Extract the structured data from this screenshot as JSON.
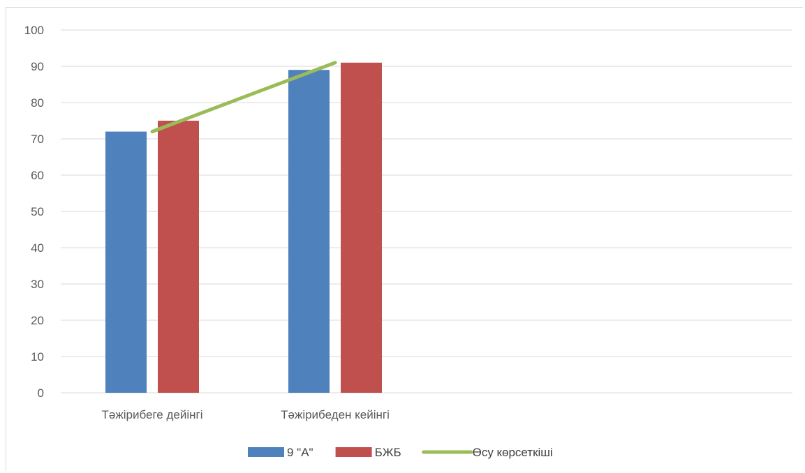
{
  "chart_data": {
    "type": "bar",
    "title": "",
    "xlabel": "",
    "ylabel": "",
    "categories": [
      "Тәжірибеге дейінгі",
      "Тәжірибеден кейінгі",
      "",
      ""
    ],
    "series": [
      {
        "name": "9 \"А\"",
        "type": "bar",
        "color": "#4f81bd",
        "values": [
          72,
          89,
          null,
          null
        ]
      },
      {
        "name": "БЖБ",
        "type": "bar",
        "color": "#c0504d",
        "values": [
          75,
          91,
          null,
          null
        ]
      },
      {
        "name": "Өсу көрсеткіші",
        "type": "line",
        "color": "#9bbb59",
        "values": [
          72,
          91,
          null,
          null
        ]
      }
    ],
    "ylim": [
      0,
      100
    ],
    "yticks": [
      0,
      10,
      20,
      30,
      40,
      50,
      60,
      70,
      80,
      90,
      100
    ],
    "yticks_labels": [
      "0",
      "10",
      "20",
      "30",
      "40",
      "50",
      "60",
      "70",
      "80",
      "90",
      "100"
    ],
    "grid": true,
    "legend": "bottom"
  }
}
